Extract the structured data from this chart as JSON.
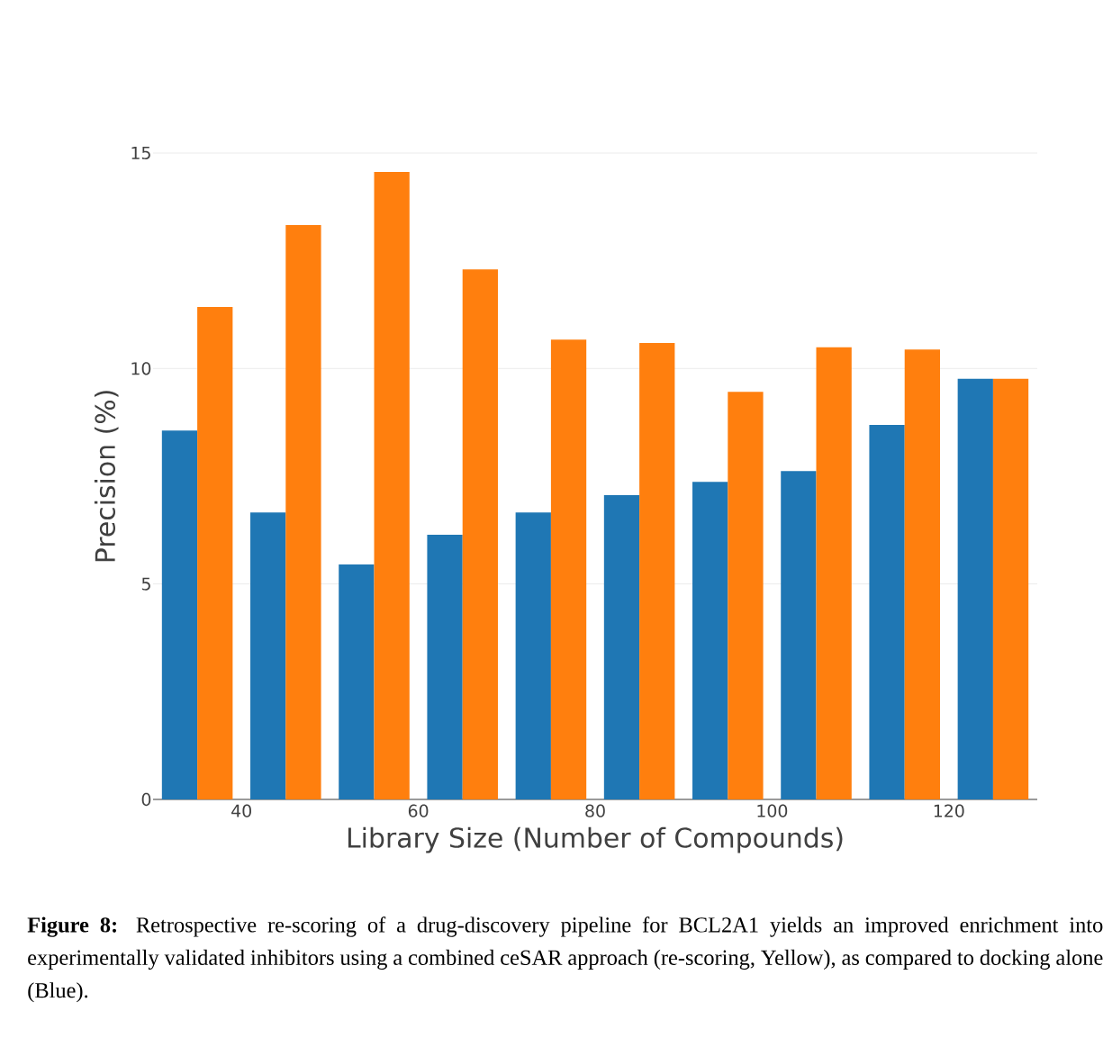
{
  "chart_data": {
    "type": "bar",
    "xlabel": "Library Size (Number of Compounds)",
    "ylabel": "Precision (%)",
    "x": [
      35,
      45,
      55,
      65,
      75,
      85,
      95,
      105,
      115,
      125
    ],
    "series": [
      {
        "color": "#1f77b4",
        "values": [
          8.56,
          6.66,
          5.45,
          6.14,
          6.66,
          7.06,
          7.37,
          7.62,
          8.69,
          9.76
        ]
      },
      {
        "color": "#ff7f0e",
        "values": [
          11.43,
          13.33,
          14.56,
          12.3,
          10.67,
          10.59,
          9.46,
          10.49,
          10.44,
          9.76
        ]
      }
    ],
    "xlim": [
      30,
      130
    ],
    "ylim": [
      0,
      15
    ],
    "xticks": [
      40,
      60,
      80,
      100,
      120
    ],
    "yticks": [
      0,
      5,
      10,
      15
    ],
    "grid": "y",
    "annotations": [
      "**Figure 8:** Retrospective re-scoring of a drug-discovery pipeline for BCL2A1 yields an improved enrichment into experimentally validated inhibitors using a combined ceSAR approach (re-scoring, Yellow), as compared to docking alone (Blue)."
    ]
  }
}
